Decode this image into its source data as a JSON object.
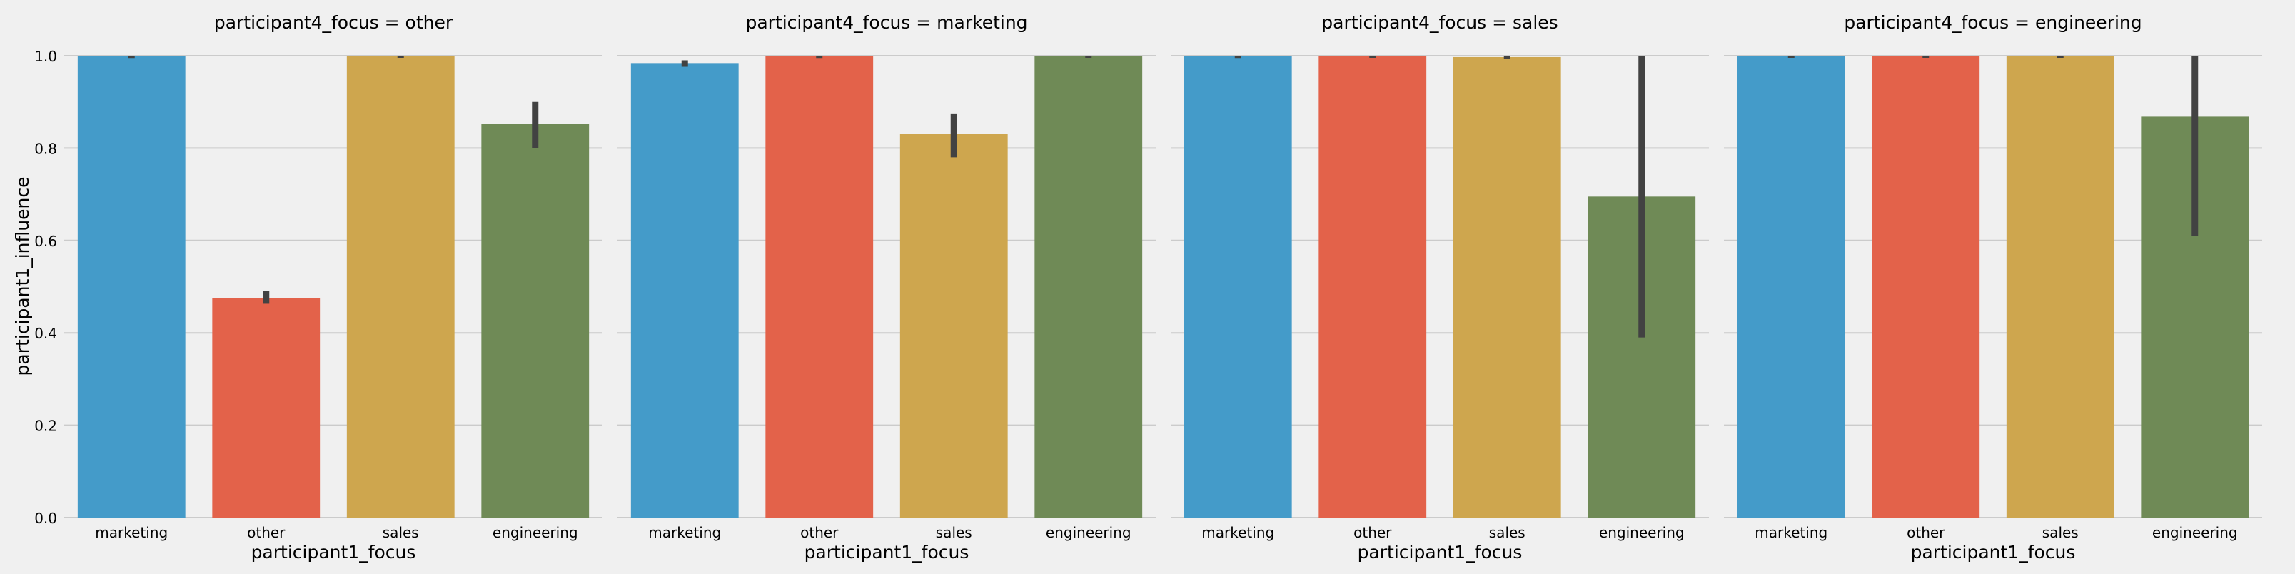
{
  "chart_data": {
    "type": "bar",
    "facet_variable": "participant4_focus",
    "y_axis_label": "participant1_influence",
    "x_axis_label": "participant1_focus",
    "ylim": [
      0,
      1
    ],
    "y_ticks": [
      "0.0",
      "0.2",
      "0.4",
      "0.6",
      "0.8",
      "1.0"
    ],
    "categories": [
      "marketing",
      "other",
      "sales",
      "engineering"
    ],
    "colors": {
      "marketing": "#449bc9",
      "other": "#e3624a",
      "sales": "#cea64e",
      "engineering": "#6f8a56",
      "errorbar": "#424242",
      "grid": "#cbcbcb",
      "background": "#f0f0f0"
    },
    "grid": true,
    "panels": [
      {
        "title": "participant4_focus = other",
        "values": [
          1.0,
          0.475,
          1.0,
          0.852
        ],
        "ci_low": [
          0.995,
          0.463,
          1.0,
          0.8
        ],
        "ci_high": [
          1.0,
          0.49,
          1.0,
          0.9
        ]
      },
      {
        "title": "participant4_focus = marketing",
        "values": [
          0.984,
          1.0,
          0.83,
          1.0
        ],
        "ci_low": [
          0.976,
          0.995,
          0.78,
          1.0
        ],
        "ci_high": [
          0.99,
          1.0,
          0.875,
          1.0
        ]
      },
      {
        "title": "participant4_focus = sales",
        "values": [
          1.0,
          1.0,
          0.997,
          0.695
        ],
        "ci_low": [
          0.995,
          0.998,
          0.993,
          0.39
        ],
        "ci_high": [
          1.0,
          1.0,
          1.0,
          1.0
        ]
      },
      {
        "title": "participant4_focus = engineering",
        "values": [
          1.0,
          1.0,
          1.0,
          0.868
        ],
        "ci_low": [
          1.0,
          0.997,
          0.997,
          0.61
        ],
        "ci_high": [
          1.0,
          1.0,
          1.0,
          1.0
        ]
      }
    ]
  }
}
